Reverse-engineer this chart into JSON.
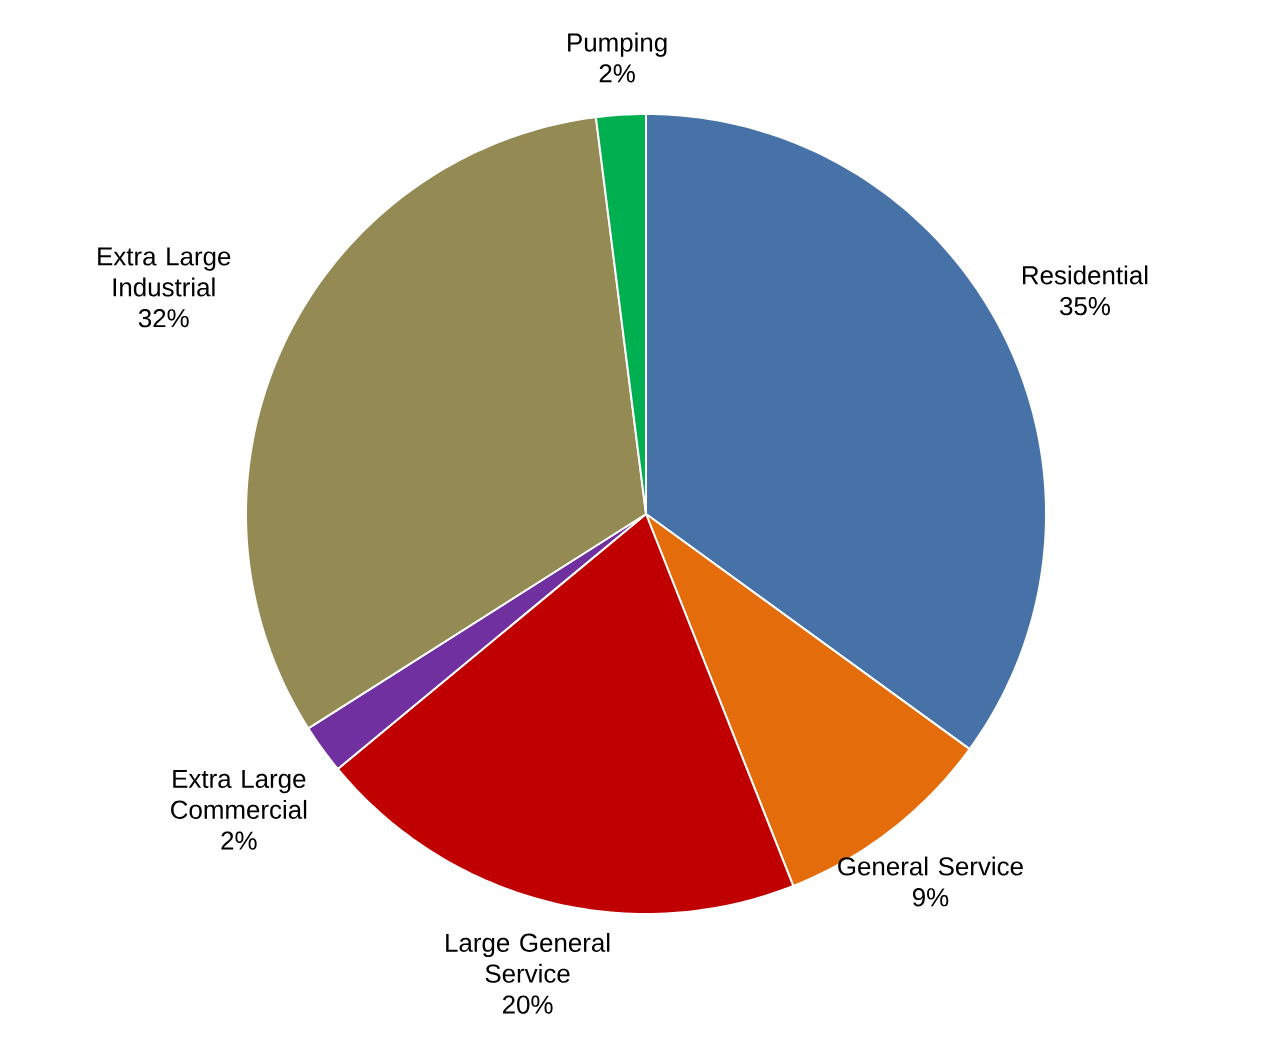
{
  "chart_data": {
    "type": "pie",
    "categories": [
      "Residential",
      "General Service",
      "Large General Service",
      "Extra Large Commercial",
      "Extra Large Industrial",
      "Pumping"
    ],
    "values": [
      35,
      9,
      20,
      2,
      32,
      2
    ],
    "value_labels": [
      "35%",
      "9%",
      "20%",
      "2%",
      "32%",
      "2%"
    ],
    "colors": [
      "#4672a8",
      "#e46c0a",
      "#c00000",
      "#7030a0",
      "#948a54",
      "#00b050"
    ]
  }
}
